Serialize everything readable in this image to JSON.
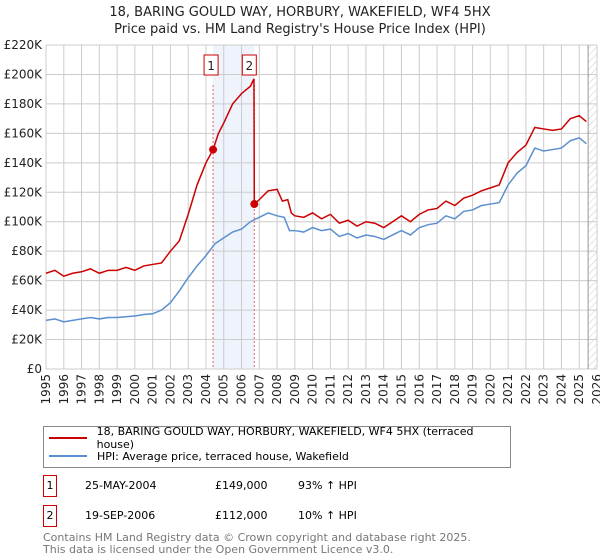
{
  "chart_data": {
    "type": "line",
    "title": "18, BARING GOULD WAY, HORBURY, WAKEFIELD, WF4 5HX",
    "subtitle": "Price paid vs. HM Land Registry's House Price Index (HPI)",
    "xlim": [
      1995,
      2026
    ],
    "ylim": [
      0,
      220000
    ],
    "grid": true,
    "y_ticks": [
      "£0",
      "£20K",
      "£40K",
      "£60K",
      "£80K",
      "£100K",
      "£120K",
      "£140K",
      "£160K",
      "£180K",
      "£200K",
      "£220K"
    ],
    "x_ticks": [
      "1995",
      "1996",
      "1997",
      "1998",
      "1999",
      "2000",
      "2001",
      "2002",
      "2003",
      "2004",
      "2005",
      "2006",
      "2007",
      "2008",
      "2009",
      "2010",
      "2011",
      "2012",
      "2013",
      "2014",
      "2015",
      "2016",
      "2017",
      "2018",
      "2019",
      "2020",
      "2021",
      "2022",
      "2023",
      "2024",
      "2025",
      "2026"
    ],
    "series": [
      {
        "name": "18, BARING GOULD WAY, HORBURY, WAKEFIELD, WF4 5HX (terraced house)",
        "color": "#cc0000",
        "points": [
          [
            1995,
            65000
          ],
          [
            1995.5,
            67000
          ],
          [
            1996,
            63000
          ],
          [
            1996.5,
            65000
          ],
          [
            1997,
            66000
          ],
          [
            1997.5,
            68000
          ],
          [
            1998,
            65000
          ],
          [
            1998.5,
            67000
          ],
          [
            1999,
            67000
          ],
          [
            1999.5,
            69000
          ],
          [
            2000,
            67000
          ],
          [
            2000.5,
            70000
          ],
          [
            2001,
            71000
          ],
          [
            2001.5,
            72000
          ],
          [
            2002,
            80000
          ],
          [
            2002.5,
            87000
          ],
          [
            2003,
            105000
          ],
          [
            2003.5,
            125000
          ],
          [
            2004,
            140000
          ],
          [
            2004.4,
            149000
          ],
          [
            2004.7,
            160000
          ],
          [
            2005,
            167000
          ],
          [
            2005.5,
            180000
          ],
          [
            2006,
            187000
          ],
          [
            2006.5,
            192000
          ],
          [
            2006.7,
            197000
          ],
          [
            2006.72,
            112000
          ],
          [
            2007,
            115000
          ],
          [
            2007.5,
            121000
          ],
          [
            2008,
            122000
          ],
          [
            2008.3,
            114000
          ],
          [
            2008.6,
            115000
          ],
          [
            2008.8,
            106000
          ],
          [
            2009,
            104000
          ],
          [
            2009.5,
            103000
          ],
          [
            2010,
            106000
          ],
          [
            2010.5,
            102000
          ],
          [
            2011,
            105000
          ],
          [
            2011.5,
            99000
          ],
          [
            2012,
            101000
          ],
          [
            2012.5,
            97000
          ],
          [
            2013,
            100000
          ],
          [
            2013.5,
            99000
          ],
          [
            2014,
            96000
          ],
          [
            2014.5,
            100000
          ],
          [
            2015,
            104000
          ],
          [
            2015.5,
            100000
          ],
          [
            2016,
            105000
          ],
          [
            2016.5,
            108000
          ],
          [
            2017,
            109000
          ],
          [
            2017.5,
            114000
          ],
          [
            2018,
            111000
          ],
          [
            2018.5,
            116000
          ],
          [
            2019,
            118000
          ],
          [
            2019.5,
            121000
          ],
          [
            2020,
            123000
          ],
          [
            2020.5,
            125000
          ],
          [
            2021,
            140000
          ],
          [
            2021.5,
            147000
          ],
          [
            2022,
            152000
          ],
          [
            2022.5,
            164000
          ],
          [
            2023,
            163000
          ],
          [
            2023.5,
            162000
          ],
          [
            2024,
            163000
          ],
          [
            2024.5,
            170000
          ],
          [
            2025,
            172000
          ],
          [
            2025.4,
            168000
          ]
        ]
      },
      {
        "name": "HPI: Average price, terraced house, Wakefield",
        "color": "#5b8fd0",
        "points": [
          [
            1995,
            33000
          ],
          [
            1995.5,
            34000
          ],
          [
            1996,
            32000
          ],
          [
            1996.5,
            33000
          ],
          [
            1997,
            34000
          ],
          [
            1997.5,
            35000
          ],
          [
            1998,
            34000
          ],
          [
            1998.5,
            35000
          ],
          [
            1999,
            35000
          ],
          [
            1999.5,
            35500
          ],
          [
            2000,
            36000
          ],
          [
            2000.5,
            37000
          ],
          [
            2001,
            37500
          ],
          [
            2001.5,
            40000
          ],
          [
            2002,
            45000
          ],
          [
            2002.5,
            53000
          ],
          [
            2003,
            62000
          ],
          [
            2003.5,
            70000
          ],
          [
            2004,
            77000
          ],
          [
            2004.5,
            85000
          ],
          [
            2005,
            89000
          ],
          [
            2005.5,
            93000
          ],
          [
            2006,
            95000
          ],
          [
            2006.5,
            100000
          ],
          [
            2007,
            103000
          ],
          [
            2007.5,
            106000
          ],
          [
            2008,
            104000
          ],
          [
            2008.4,
            103000
          ],
          [
            2008.7,
            94000
          ],
          [
            2009,
            94000
          ],
          [
            2009.5,
            93000
          ],
          [
            2010,
            96000
          ],
          [
            2010.5,
            94000
          ],
          [
            2011,
            95000
          ],
          [
            2011.5,
            90000
          ],
          [
            2012,
            92000
          ],
          [
            2012.5,
            89000
          ],
          [
            2013,
            91000
          ],
          [
            2013.5,
            90000
          ],
          [
            2014,
            88000
          ],
          [
            2014.5,
            91000
          ],
          [
            2015,
            94000
          ],
          [
            2015.5,
            91000
          ],
          [
            2016,
            96000
          ],
          [
            2016.5,
            98000
          ],
          [
            2017,
            99000
          ],
          [
            2017.5,
            104000
          ],
          [
            2018,
            102000
          ],
          [
            2018.5,
            107000
          ],
          [
            2019,
            108000
          ],
          [
            2019.5,
            111000
          ],
          [
            2020,
            112000
          ],
          [
            2020.5,
            113000
          ],
          [
            2021,
            125000
          ],
          [
            2021.5,
            133000
          ],
          [
            2022,
            138000
          ],
          [
            2022.5,
            150000
          ],
          [
            2023,
            148000
          ],
          [
            2023.5,
            149000
          ],
          [
            2024,
            150000
          ],
          [
            2024.5,
            155000
          ],
          [
            2025,
            157000
          ],
          [
            2025.4,
            153000
          ]
        ]
      }
    ],
    "sales": [
      {
        "label": "1",
        "x": 2004.4,
        "y": 149000
      },
      {
        "label": "2",
        "x": 2006.72,
        "y": 112000
      }
    ],
    "forecast_from": 2025.5
  },
  "legend": {
    "red": "18, BARING GOULD WAY, HORBURY, WAKEFIELD, WF4 5HX (terraced house)",
    "blue": "HPI: Average price, terraced house, Wakefield"
  },
  "sales_table": [
    {
      "num": "1",
      "date": "25-MAY-2004",
      "price": "£149,000",
      "hpi": "93% ↑ HPI"
    },
    {
      "num": "2",
      "date": "19-SEP-2006",
      "price": "£112,000",
      "hpi": "10% ↑ HPI"
    }
  ],
  "footer": {
    "line1": "Contains HM Land Registry data © Crown copyright and database right 2025.",
    "line2": "This data is licensed under the Open Government Licence v3.0."
  }
}
